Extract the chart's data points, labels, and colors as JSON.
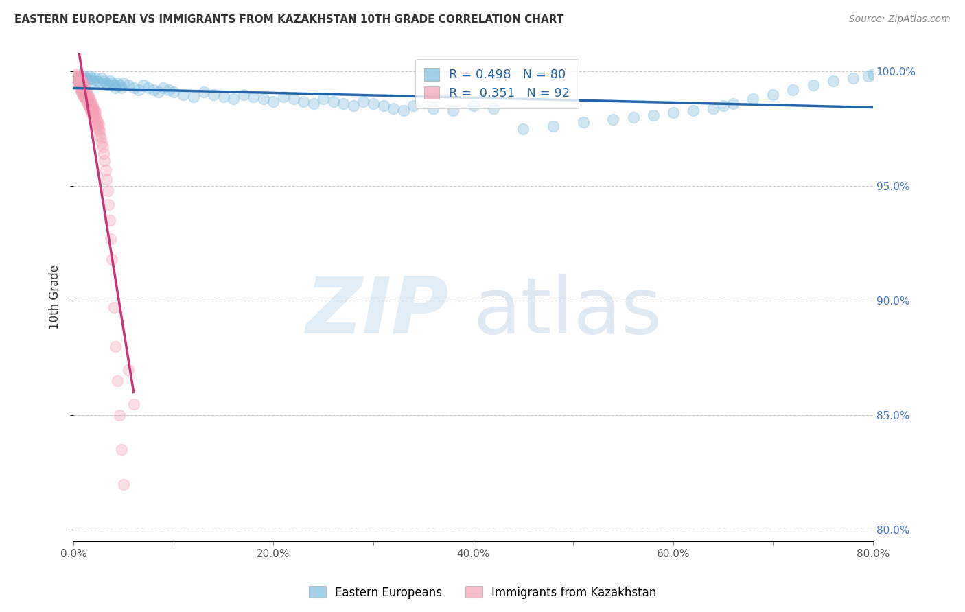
{
  "title": "EASTERN EUROPEAN VS IMMIGRANTS FROM KAZAKHSTAN 10TH GRADE CORRELATION CHART",
  "source": "Source: ZipAtlas.com",
  "ylabel": "10th Grade",
  "xlim": [
    0.0,
    0.8
  ],
  "ylim": [
    0.795,
    1.008
  ],
  "xticks": [
    0.0,
    0.1,
    0.2,
    0.3,
    0.4,
    0.5,
    0.6,
    0.7,
    0.8
  ],
  "xticklabels": [
    "0.0%",
    "",
    "20.0%",
    "",
    "40.0%",
    "",
    "60.0%",
    "",
    "80.0%"
  ],
  "yticks": [
    0.8,
    0.85,
    0.9,
    0.95,
    1.0
  ],
  "yticklabels_right": [
    "80.0%",
    "85.0%",
    "90.0%",
    "95.0%",
    "100.0%"
  ],
  "blue_color": "#7bbcde",
  "pink_color": "#f4a0b5",
  "line_blue": "#2166ac",
  "line_pink": "#cc3377",
  "blue_R": 0.498,
  "blue_N": 80,
  "pink_R": 0.351,
  "pink_N": 92,
  "blue_label": "Eastern Europeans",
  "pink_label": "Immigrants from Kazakhstan",
  "blue_scatter_x": [
    0.005,
    0.008,
    0.01,
    0.012,
    0.014,
    0.016,
    0.018,
    0.02,
    0.022,
    0.024,
    0.026,
    0.028,
    0.03,
    0.032,
    0.034,
    0.036,
    0.038,
    0.04,
    0.042,
    0.044,
    0.046,
    0.048,
    0.05,
    0.055,
    0.06,
    0.065,
    0.07,
    0.075,
    0.08,
    0.085,
    0.09,
    0.095,
    0.1,
    0.11,
    0.12,
    0.13,
    0.14,
    0.15,
    0.16,
    0.17,
    0.18,
    0.19,
    0.2,
    0.21,
    0.22,
    0.23,
    0.24,
    0.25,
    0.26,
    0.27,
    0.28,
    0.29,
    0.3,
    0.31,
    0.32,
    0.33,
    0.34,
    0.36,
    0.38,
    0.4,
    0.42,
    0.45,
    0.48,
    0.51,
    0.54,
    0.56,
    0.58,
    0.6,
    0.62,
    0.64,
    0.65,
    0.66,
    0.68,
    0.7,
    0.72,
    0.74,
    0.76,
    0.78,
    0.795,
    0.8
  ],
  "blue_scatter_y": [
    0.998,
    0.997,
    0.998,
    0.997,
    0.996,
    0.998,
    0.997,
    0.996,
    0.997,
    0.996,
    0.995,
    0.997,
    0.996,
    0.995,
    0.994,
    0.996,
    0.995,
    0.994,
    0.993,
    0.995,
    0.994,
    0.993,
    0.995,
    0.994,
    0.993,
    0.992,
    0.994,
    0.993,
    0.992,
    0.991,
    0.993,
    0.992,
    0.991,
    0.99,
    0.989,
    0.991,
    0.99,
    0.989,
    0.988,
    0.99,
    0.989,
    0.988,
    0.987,
    0.989,
    0.988,
    0.987,
    0.986,
    0.988,
    0.987,
    0.986,
    0.985,
    0.987,
    0.986,
    0.985,
    0.984,
    0.983,
    0.985,
    0.984,
    0.983,
    0.985,
    0.984,
    0.975,
    0.976,
    0.978,
    0.979,
    0.98,
    0.981,
    0.982,
    0.983,
    0.984,
    0.985,
    0.986,
    0.988,
    0.99,
    0.992,
    0.994,
    0.996,
    0.997,
    0.998,
    0.999
  ],
  "pink_scatter_x": [
    0.002,
    0.003,
    0.003,
    0.004,
    0.004,
    0.004,
    0.005,
    0.005,
    0.005,
    0.005,
    0.006,
    0.006,
    0.006,
    0.006,
    0.006,
    0.007,
    0.007,
    0.007,
    0.007,
    0.008,
    0.008,
    0.008,
    0.008,
    0.009,
    0.009,
    0.009,
    0.009,
    0.01,
    0.01,
    0.01,
    0.01,
    0.011,
    0.011,
    0.011,
    0.012,
    0.012,
    0.012,
    0.013,
    0.013,
    0.013,
    0.014,
    0.014,
    0.014,
    0.015,
    0.015,
    0.015,
    0.016,
    0.016,
    0.016,
    0.017,
    0.017,
    0.017,
    0.018,
    0.018,
    0.018,
    0.019,
    0.019,
    0.02,
    0.02,
    0.02,
    0.021,
    0.021,
    0.022,
    0.022,
    0.023,
    0.023,
    0.024,
    0.024,
    0.025,
    0.025,
    0.026,
    0.026,
    0.027,
    0.028,
    0.029,
    0.03,
    0.031,
    0.032,
    0.033,
    0.034,
    0.035,
    0.036,
    0.037,
    0.038,
    0.04,
    0.042,
    0.044,
    0.046,
    0.048,
    0.05,
    0.055,
    0.06
  ],
  "pink_scatter_y": [
    0.998,
    0.999,
    0.997,
    0.998,
    0.996,
    0.997,
    0.998,
    0.996,
    0.997,
    0.995,
    0.998,
    0.996,
    0.997,
    0.995,
    0.993,
    0.997,
    0.995,
    0.993,
    0.992,
    0.996,
    0.994,
    0.992,
    0.991,
    0.995,
    0.993,
    0.991,
    0.99,
    0.994,
    0.992,
    0.99,
    0.989,
    0.993,
    0.991,
    0.989,
    0.992,
    0.99,
    0.988,
    0.991,
    0.989,
    0.987,
    0.99,
    0.988,
    0.986,
    0.989,
    0.987,
    0.985,
    0.988,
    0.986,
    0.984,
    0.987,
    0.985,
    0.983,
    0.986,
    0.984,
    0.982,
    0.985,
    0.983,
    0.984,
    0.982,
    0.98,
    0.983,
    0.981,
    0.982,
    0.98,
    0.979,
    0.977,
    0.978,
    0.976,
    0.977,
    0.975,
    0.974,
    0.972,
    0.971,
    0.969,
    0.967,
    0.964,
    0.961,
    0.957,
    0.953,
    0.948,
    0.942,
    0.935,
    0.927,
    0.918,
    0.897,
    0.88,
    0.865,
    0.85,
    0.835,
    0.82,
    0.87,
    0.855
  ]
}
